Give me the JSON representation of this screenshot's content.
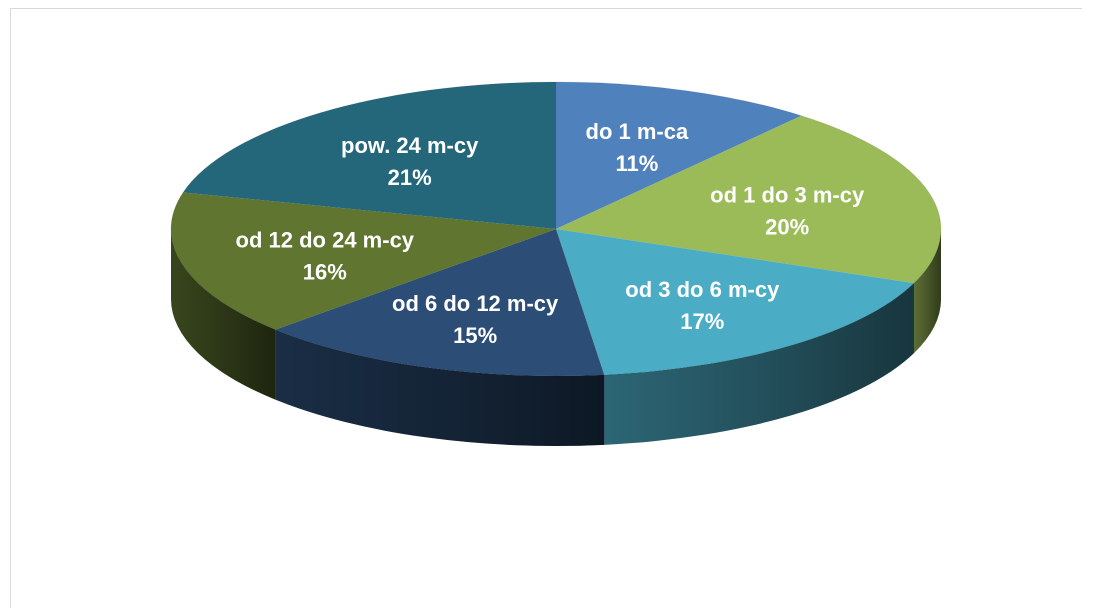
{
  "chart_data": {
    "type": "pie",
    "title": "",
    "categories": [
      "do 1 m-ca",
      "od 1 do 3 m-cy",
      "od 3 do 6 m-cy",
      "od 6 do 12 m-cy",
      "od 12 do 24 m-cy",
      "pow. 24 m-cy"
    ],
    "values": [
      11,
      20,
      17,
      15,
      16,
      21
    ],
    "value_labels": [
      "11%",
      "20%",
      "17%",
      "15%",
      "16%",
      "21%"
    ],
    "colors": [
      "#4f81bd",
      "#9bbb59",
      "#4bacc6",
      "#2c4d75",
      "#5f7530",
      "#25677a"
    ],
    "style": "3d"
  }
}
